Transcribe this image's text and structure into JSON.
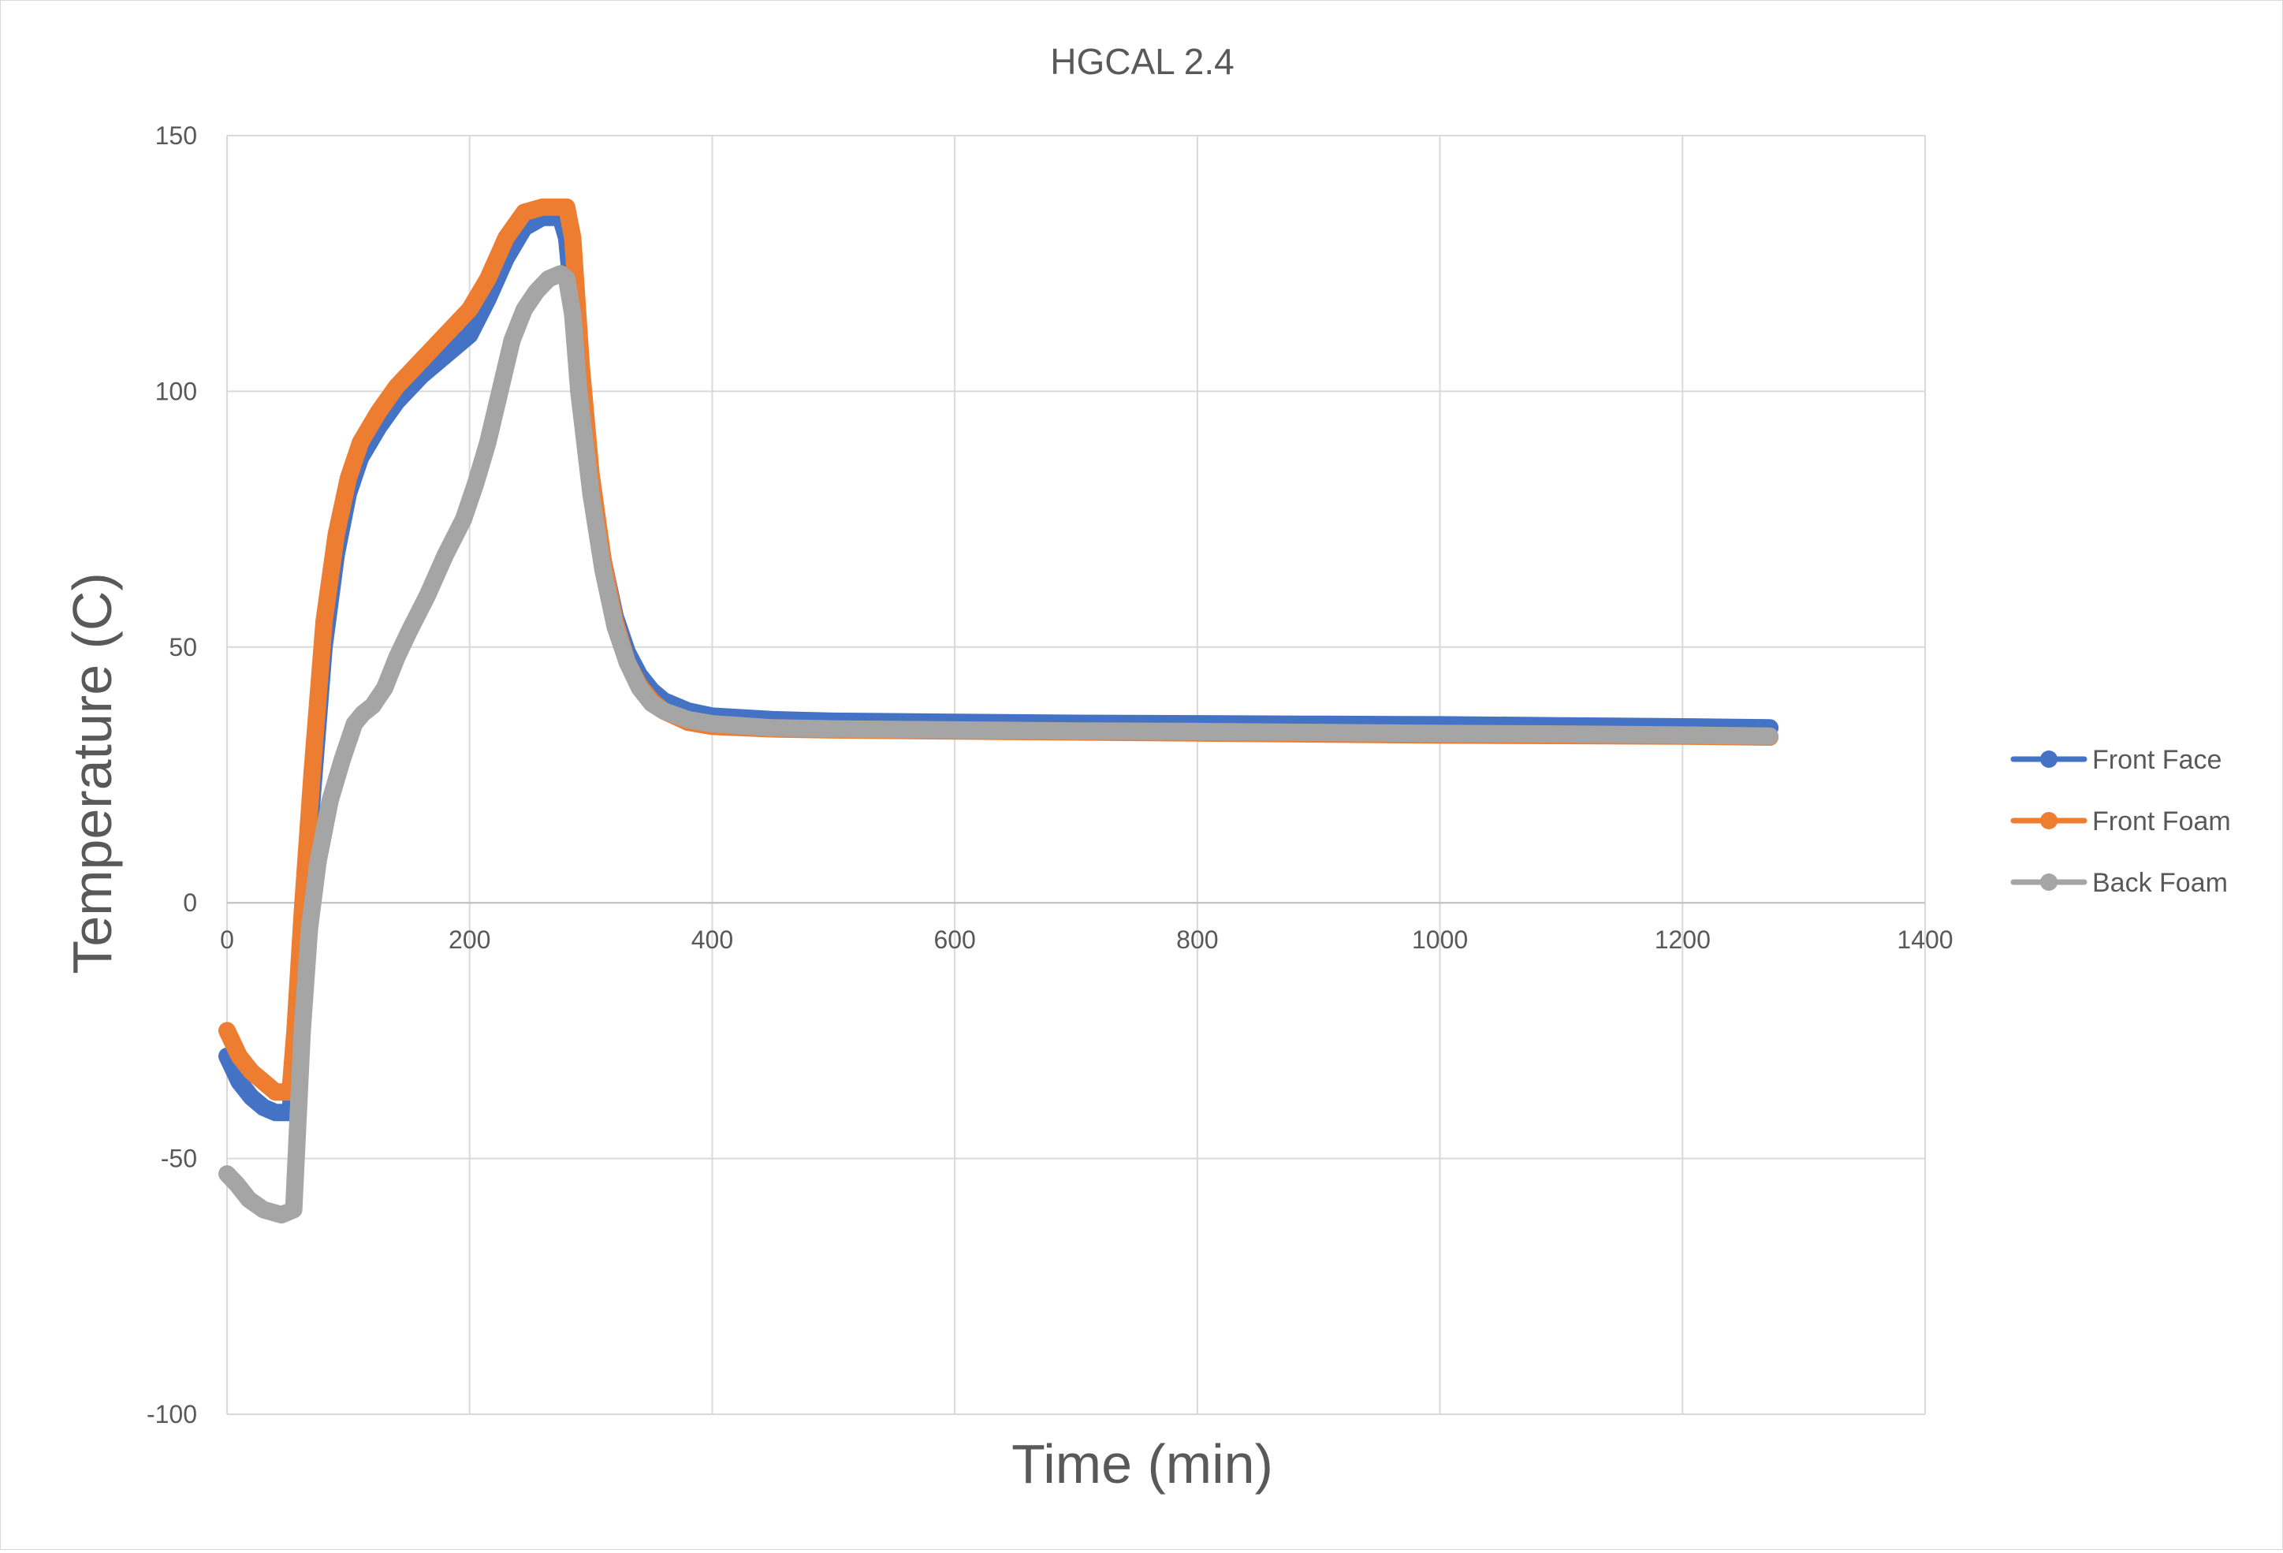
{
  "chart_data": {
    "type": "line",
    "title": "HGCAL 2.4",
    "xlabel": "Time (min)",
    "ylabel": "Temperature (C)",
    "xlim": [
      0,
      1400
    ],
    "ylim": [
      -100,
      150
    ],
    "xticks": [
      0,
      200,
      400,
      600,
      800,
      1000,
      1200,
      1400
    ],
    "yticks": [
      -100,
      -50,
      0,
      50,
      100,
      150
    ],
    "xtick_labels": [
      "0",
      "200",
      "400",
      "600",
      "800",
      "1000",
      "1200",
      "1400"
    ],
    "ytick_labels": [
      "-100",
      "-50",
      "0",
      "50",
      "100",
      "150"
    ],
    "grid": true,
    "legend_position": "right",
    "series": [
      {
        "name": "Front Face",
        "color": "#4472c4",
        "points": [
          [
            0,
            -30
          ],
          [
            10,
            -35
          ],
          [
            20,
            -38
          ],
          [
            30,
            -40
          ],
          [
            40,
            -41
          ],
          [
            52,
            -41
          ],
          [
            56,
            -30
          ],
          [
            62,
            -5
          ],
          [
            70,
            20
          ],
          [
            80,
            50
          ],
          [
            90,
            68
          ],
          [
            100,
            80
          ],
          [
            110,
            87
          ],
          [
            125,
            93
          ],
          [
            140,
            98
          ],
          [
            160,
            103
          ],
          [
            180,
            107
          ],
          [
            200,
            111
          ],
          [
            215,
            118
          ],
          [
            230,
            126
          ],
          [
            245,
            132
          ],
          [
            260,
            134
          ],
          [
            275,
            134
          ],
          [
            280,
            130
          ],
          [
            290,
            105
          ],
          [
            300,
            82
          ],
          [
            310,
            67
          ],
          [
            320,
            56
          ],
          [
            330,
            49
          ],
          [
            340,
            44.5
          ],
          [
            350,
            41.5
          ],
          [
            360,
            39.5
          ],
          [
            380,
            37.5
          ],
          [
            400,
            36.5
          ],
          [
            450,
            35.8
          ],
          [
            500,
            35.5
          ],
          [
            600,
            35.3
          ],
          [
            700,
            35.1
          ],
          [
            800,
            35.0
          ],
          [
            900,
            34.9
          ],
          [
            1000,
            34.8
          ],
          [
            1100,
            34.6
          ],
          [
            1200,
            34.4
          ],
          [
            1272,
            34.2
          ]
        ]
      },
      {
        "name": "Front Foam",
        "color": "#ed7d31",
        "points": [
          [
            0,
            -25
          ],
          [
            10,
            -30
          ],
          [
            20,
            -33
          ],
          [
            30,
            -35
          ],
          [
            40,
            -37
          ],
          [
            52,
            -37
          ],
          [
            56,
            -25
          ],
          [
            62,
            -2
          ],
          [
            70,
            25
          ],
          [
            80,
            55
          ],
          [
            90,
            72
          ],
          [
            100,
            83
          ],
          [
            110,
            90
          ],
          [
            125,
            96
          ],
          [
            140,
            101
          ],
          [
            160,
            106
          ],
          [
            180,
            111
          ],
          [
            200,
            116
          ],
          [
            215,
            122
          ],
          [
            230,
            130
          ],
          [
            245,
            135
          ],
          [
            260,
            136
          ],
          [
            280,
            136
          ],
          [
            285,
            130
          ],
          [
            292,
            105
          ],
          [
            300,
            84
          ],
          [
            310,
            67
          ],
          [
            320,
            55
          ],
          [
            330,
            47
          ],
          [
            340,
            42.5
          ],
          [
            350,
            39.5
          ],
          [
            360,
            37.5
          ],
          [
            380,
            35.3
          ],
          [
            400,
            34.5
          ],
          [
            450,
            34.0
          ],
          [
            500,
            33.8
          ],
          [
            600,
            33.6
          ],
          [
            700,
            33.4
          ],
          [
            800,
            33.2
          ],
          [
            900,
            33.0
          ],
          [
            1000,
            32.8
          ],
          [
            1100,
            32.7
          ],
          [
            1200,
            32.6
          ],
          [
            1272,
            32.4
          ]
        ]
      },
      {
        "name": "Back Foam",
        "color": "#a5a5a5",
        "points": [
          [
            0,
            -53
          ],
          [
            8,
            -55
          ],
          [
            18,
            -58
          ],
          [
            30,
            -60
          ],
          [
            45,
            -61
          ],
          [
            55,
            -60
          ],
          [
            58,
            -45
          ],
          [
            62,
            -25
          ],
          [
            68,
            -5
          ],
          [
            75,
            8
          ],
          [
            85,
            20
          ],
          [
            95,
            28
          ],
          [
            105,
            35
          ],
          [
            112,
            37
          ],
          [
            120,
            38.5
          ],
          [
            130,
            42
          ],
          [
            140,
            48
          ],
          [
            150,
            53
          ],
          [
            165,
            60
          ],
          [
            180,
            68
          ],
          [
            195,
            75
          ],
          [
            205,
            82
          ],
          [
            215,
            90
          ],
          [
            225,
            100
          ],
          [
            235,
            110
          ],
          [
            245,
            116
          ],
          [
            255,
            119.5
          ],
          [
            265,
            122
          ],
          [
            275,
            123
          ],
          [
            280,
            122
          ],
          [
            285,
            115
          ],
          [
            290,
            100
          ],
          [
            300,
            80
          ],
          [
            310,
            65
          ],
          [
            320,
            54
          ],
          [
            330,
            47
          ],
          [
            340,
            42
          ],
          [
            350,
            39
          ],
          [
            360,
            37.5
          ],
          [
            380,
            35.8
          ],
          [
            400,
            35.0
          ],
          [
            450,
            34.2
          ],
          [
            500,
            34.0
          ],
          [
            600,
            33.8
          ],
          [
            700,
            33.6
          ],
          [
            800,
            33.5
          ],
          [
            900,
            33.3
          ],
          [
            1000,
            33.1
          ],
          [
            1100,
            33.0
          ],
          [
            1200,
            32.8
          ],
          [
            1272,
            32.6
          ]
        ]
      }
    ]
  }
}
